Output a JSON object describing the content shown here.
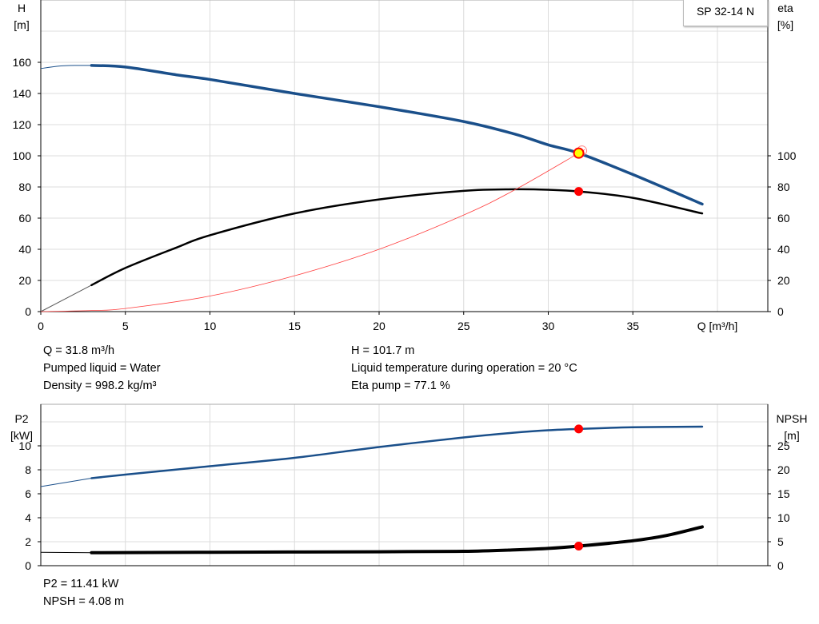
{
  "model_label": "SP 32-14 N",
  "colors": {
    "head": "#1a4f8a",
    "eta": "#000000",
    "system": "#ff4040",
    "p2": "#1a4f8a",
    "npsh": "#000000",
    "duty_point": "#ff0000",
    "duty_point_head": "#ffff00"
  },
  "info_top": {
    "q": "Q = 31.8 m³/h",
    "liquid": "Pumped liquid = Water",
    "density": "Density = 998.2 kg/m³",
    "h": "H = 101.7 m",
    "temp": "Liquid temperature during operation = 20 °C",
    "eta": "Eta pump = 77.1 %"
  },
  "info_bottom": {
    "p2": "P2 = 11.41 kW",
    "npsh": "NPSH = 4.08 m"
  },
  "chart_data": [
    {
      "type": "line",
      "xlabel": "Q [m³/h]",
      "ylabel": "H\n[m]",
      "y2label": "eta\n[%]",
      "xlim": [
        0,
        43
      ],
      "ylim": [
        0,
        200
      ],
      "y2lim": [
        0,
        200
      ],
      "xticks": [
        0,
        5,
        10,
        15,
        20,
        25,
        30,
        35
      ],
      "yticks": [
        0,
        20,
        40,
        60,
        80,
        100,
        120,
        140,
        160
      ],
      "y2ticks": [
        0,
        20,
        40,
        60,
        80,
        100
      ],
      "grid": true,
      "series": [
        {
          "key": "head",
          "axis": "left",
          "x": [
            0,
            1,
            2,
            3,
            5,
            8,
            10,
            15,
            20,
            25,
            28,
            30,
            31.8,
            35,
            39.1
          ],
          "y": [
            156,
            157.5,
            158,
            158,
            157,
            152,
            149,
            140,
            131.5,
            122,
            114,
            107,
            101.7,
            88,
            69
          ],
          "thick_from": 3
        },
        {
          "key": "eta",
          "axis": "right",
          "x": [
            0,
            3,
            5,
            8,
            10,
            15,
            20,
            25,
            28,
            30,
            31.8,
            35,
            39.1
          ],
          "y": [
            0,
            17,
            28,
            41,
            49,
            63,
            72,
            77.5,
            78.5,
            78.2,
            77.1,
            73,
            63
          ],
          "thick_from": 3
        },
        {
          "key": "system",
          "axis": "left",
          "x": [
            0,
            3,
            5,
            10,
            15,
            20,
            25,
            28,
            31.8,
            32
          ],
          "y": [
            0,
            0.7,
            2,
            10,
            23,
            40,
            62,
            78,
            101.7,
            103
          ]
        }
      ],
      "duty_point": {
        "x": 31.8,
        "head": 101.7,
        "eta": 77.1
      }
    },
    {
      "type": "line",
      "ylabel": "P2\n[kW]",
      "y2label": "NPSH\n[m]",
      "xlim": [
        0,
        43
      ],
      "ylim": [
        0,
        13.4
      ],
      "y2lim": [
        0,
        33.5
      ],
      "yticks": [
        0,
        2,
        4,
        6,
        8,
        10
      ],
      "y2ticks": [
        0,
        5,
        10,
        15,
        20,
        25
      ],
      "grid": true,
      "series": [
        {
          "key": "p2",
          "axis": "left",
          "x": [
            0,
            3,
            5,
            10,
            15,
            20,
            25,
            28,
            30,
            31.8,
            35,
            39.1
          ],
          "y": [
            6.6,
            7.3,
            7.6,
            8.3,
            9.0,
            9.9,
            10.7,
            11.1,
            11.3,
            11.41,
            11.55,
            11.6
          ],
          "thick_from": 3
        },
        {
          "key": "npsh",
          "axis": "right",
          "x": [
            0,
            3,
            10,
            20,
            25,
            28,
            30,
            31.8,
            35,
            37,
            39.1
          ],
          "y": [
            2.8,
            2.7,
            2.8,
            2.9,
            3.0,
            3.3,
            3.6,
            4.08,
            5.2,
            6.3,
            8.1
          ],
          "thick_from": 3
        }
      ],
      "duty_point": {
        "x": 31.8,
        "p2": 11.41,
        "npsh": 4.08
      }
    }
  ]
}
